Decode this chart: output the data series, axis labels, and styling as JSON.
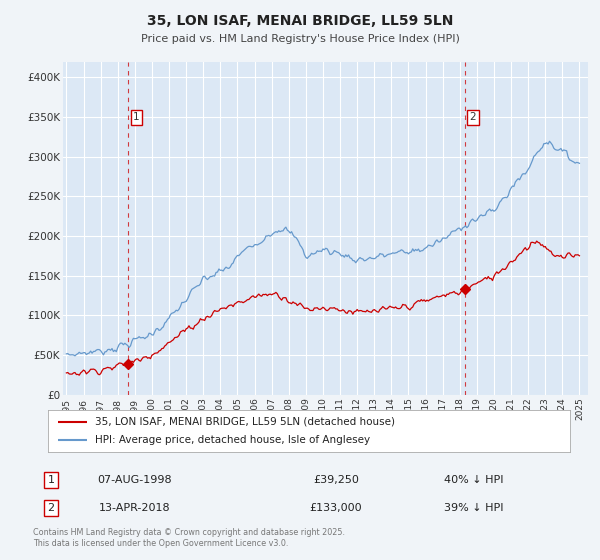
{
  "title": "35, LON ISAF, MENAI BRIDGE, LL59 5LN",
  "subtitle": "Price paid vs. HM Land Registry's House Price Index (HPI)",
  "legend_entry1": "35, LON ISAF, MENAI BRIDGE, LL59 5LN (detached house)",
  "legend_entry2": "HPI: Average price, detached house, Isle of Anglesey",
  "footer": "Contains HM Land Registry data © Crown copyright and database right 2025.\nThis data is licensed under the Open Government Licence v3.0.",
  "label1_date": "07-AUG-1998",
  "label1_price": "£39,250",
  "label1_hpi": "40% ↓ HPI",
  "label2_date": "13-APR-2018",
  "label2_price": "£133,000",
  "label2_hpi": "39% ↓ HPI",
  "marker1_year": 1998.6,
  "marker1_value_red": 39250,
  "marker2_year": 2018.28,
  "marker2_value_red": 133000,
  "vline1_year": 1998.6,
  "vline2_year": 2018.28,
  "red_color": "#cc0000",
  "blue_color": "#6699cc",
  "plot_bg_color": "#dce8f5",
  "fig_bg_color": "#f0f4f8",
  "ylim": [
    0,
    420000
  ],
  "xlim_start": 1994.8,
  "xlim_end": 2025.5,
  "yticks": [
    0,
    50000,
    100000,
    150000,
    200000,
    250000,
    300000,
    350000,
    400000
  ],
  "ytick_labels": [
    "£0",
    "£50K",
    "£100K",
    "£150K",
    "£200K",
    "£250K",
    "£300K",
    "£350K",
    "£400K"
  ],
  "xticks": [
    1995,
    1996,
    1997,
    1998,
    1999,
    2000,
    2001,
    2002,
    2003,
    2004,
    2005,
    2006,
    2007,
    2008,
    2009,
    2010,
    2011,
    2012,
    2013,
    2014,
    2015,
    2016,
    2017,
    2018,
    2019,
    2020,
    2021,
    2022,
    2023,
    2024,
    2025
  ]
}
